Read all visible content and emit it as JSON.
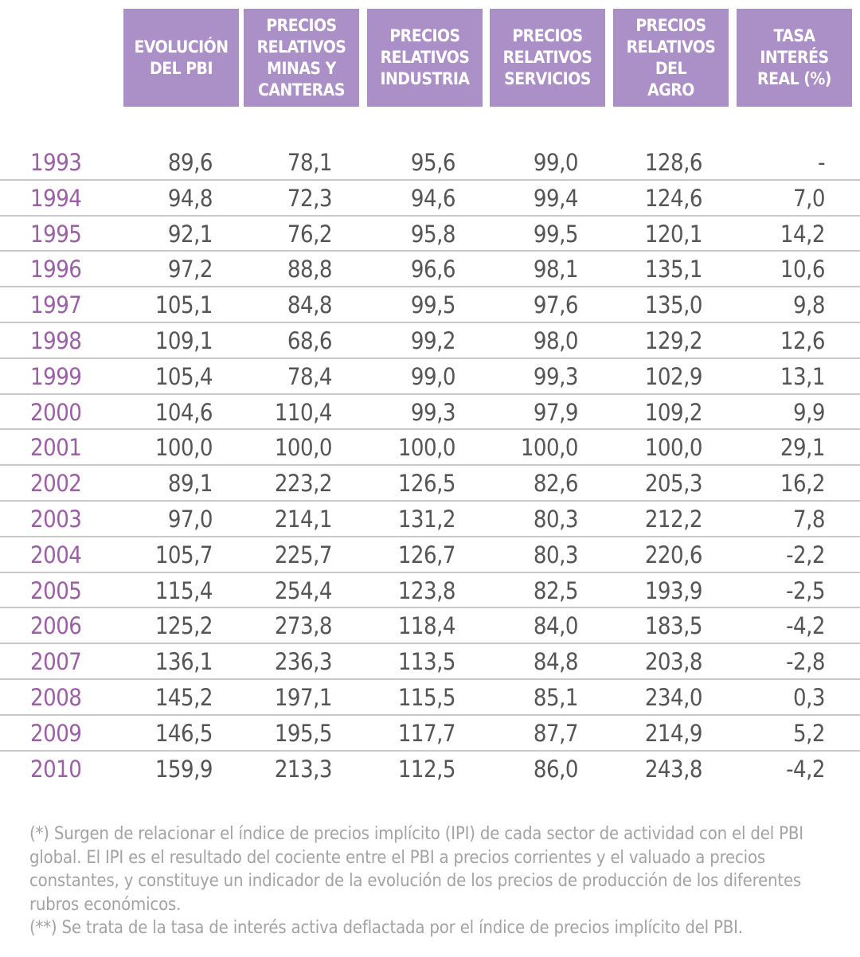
{
  "headers": [
    "EVOLUCIÓN\nDEL PBI",
    "PRECIOS\nRELATIVOS\nMINAS Y\nCANTERAS",
    "PRECIOS\nRELATIVOS\nINDUSTRIA",
    "PRECIOS\nRELATIVOS\nSERVICIOS",
    "PRECIOS\nRELATIVOS DEL\nAGRO",
    "TASA INTERÉS\nREAL (%)"
  ],
  "colors": {
    "header_bg": "#ab8fc7",
    "year_text": "#9b5fa6",
    "value_text": "#555555",
    "note_text": "#a3a3a3",
    "separator": "#c9c9c9"
  },
  "rows": [
    {
      "year": "1993",
      "values": [
        "89,6",
        "78,1",
        "95,6",
        "99,0",
        "128,6",
        "-"
      ]
    },
    {
      "year": "1994",
      "values": [
        "94,8",
        "72,3",
        "94,6",
        "99,4",
        "124,6",
        "7,0"
      ]
    },
    {
      "year": "1995",
      "values": [
        "92,1",
        "76,2",
        "95,8",
        "99,5",
        "120,1",
        "14,2"
      ]
    },
    {
      "year": "1996",
      "values": [
        "97,2",
        "88,8",
        "96,6",
        "98,1",
        "135,1",
        "10,6"
      ]
    },
    {
      "year": "1997",
      "values": [
        "105,1",
        "84,8",
        "99,5",
        "97,6",
        "135,0",
        "9,8"
      ]
    },
    {
      "year": "1998",
      "values": [
        "109,1",
        "68,6",
        "99,2",
        "98,0",
        "129,2",
        "12,6"
      ]
    },
    {
      "year": "1999",
      "values": [
        "105,4",
        "78,4",
        "99,0",
        "99,3",
        "102,9",
        "13,1"
      ]
    },
    {
      "year": "2000",
      "values": [
        "104,6",
        "110,4",
        "99,3",
        "97,9",
        "109,2",
        "9,9"
      ]
    },
    {
      "year": "2001",
      "values": [
        "100,0",
        "100,0",
        "100,0",
        "100,0",
        "100,0",
        "29,1"
      ]
    },
    {
      "year": "2002",
      "values": [
        "89,1",
        "223,2",
        "126,5",
        "82,6",
        "205,3",
        "16,2"
      ]
    },
    {
      "year": "2003",
      "values": [
        "97,0",
        "214,1",
        "131,2",
        "80,3",
        "212,2",
        "7,8"
      ]
    },
    {
      "year": "2004",
      "values": [
        "105,7",
        "225,7",
        "126,7",
        "80,3",
        "220,6",
        "-2,2"
      ]
    },
    {
      "year": "2005",
      "values": [
        "115,4",
        "254,4",
        "123,8",
        "82,5",
        "193,9",
        "-2,5"
      ]
    },
    {
      "year": "2006",
      "values": [
        "125,2",
        "273,8",
        "118,4",
        "84,0",
        "183,5",
        "-4,2"
      ]
    },
    {
      "year": "2007",
      "values": [
        "136,1",
        "236,3",
        "113,5",
        "84,8",
        "203,8",
        "-2,8"
      ]
    },
    {
      "year": "2008",
      "values": [
        "145,2",
        "197,1",
        "115,5",
        "85,1",
        "234,0",
        "0,3"
      ]
    },
    {
      "year": "2009",
      "values": [
        "146,5",
        "195,5",
        "117,7",
        "87,7",
        "214,9",
        "5,2"
      ]
    },
    {
      "year": "2010",
      "values": [
        "159,9",
        "213,3",
        "112,5",
        "86,0",
        "243,8",
        "-4,2"
      ]
    }
  ],
  "notes": {
    "note1": "(*) Surgen de relacionar el índice de precios implícito (IPI) de cada sector de actividad con el del PBI global. El IPI es el resultado del cociente entre el PBI a precios corrientes y el valuado a precios constantes, y constituye un indicador de la evolución de los precios de producción de los diferentes rubros económicos.",
    "note2": "(**) Se trata de la tasa de interés activa deflactada por el índice de precios implícito del PBI."
  }
}
